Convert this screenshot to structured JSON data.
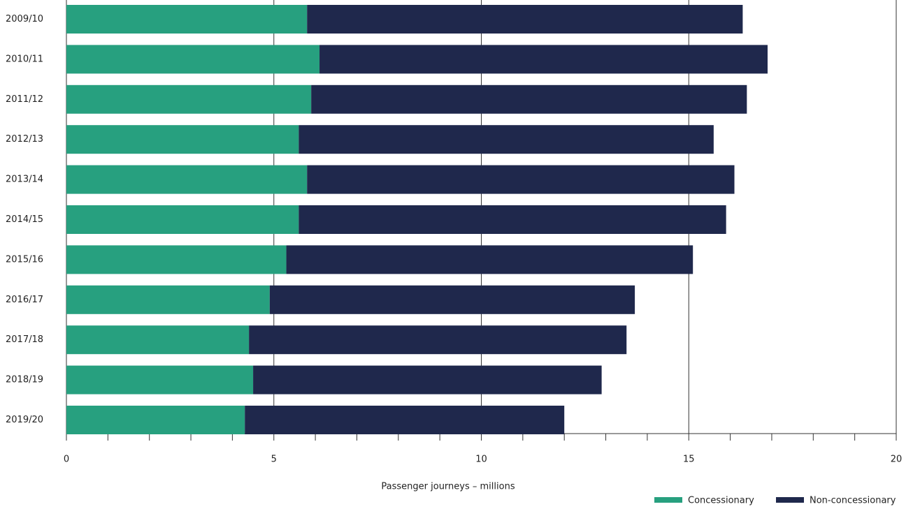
{
  "chart_data": {
    "type": "stacked_barh",
    "categories": [
      "2009/10",
      "2010/11",
      "2011/12",
      "2012/13",
      "2013/14",
      "2014/15",
      "2015/16",
      "2016/17",
      "2017/18",
      "2018/19",
      "2019/20"
    ],
    "series": [
      {
        "name": "Concessionary",
        "color": "#27a07f",
        "values": [
          5.8,
          6.1,
          5.9,
          5.6,
          5.8,
          5.6,
          5.3,
          4.9,
          4.4,
          4.5,
          4.3
        ]
      },
      {
        "name": "Non-concessionary",
        "color": "#1f284c",
        "values": [
          10.5,
          10.8,
          10.5,
          10.0,
          10.3,
          10.3,
          9.8,
          8.8,
          9.1,
          8.4,
          7.7
        ]
      }
    ],
    "x_label": "Passenger journeys – millions",
    "xlim": [
      0,
      20
    ],
    "xticks": [
      0,
      5,
      10,
      15,
      20
    ],
    "xticks_minor": [
      1,
      2,
      3,
      4,
      6,
      7,
      8,
      9,
      11,
      12,
      13,
      14,
      16,
      17,
      18,
      19
    ],
    "grid": true,
    "legend": "bottom-right"
  }
}
